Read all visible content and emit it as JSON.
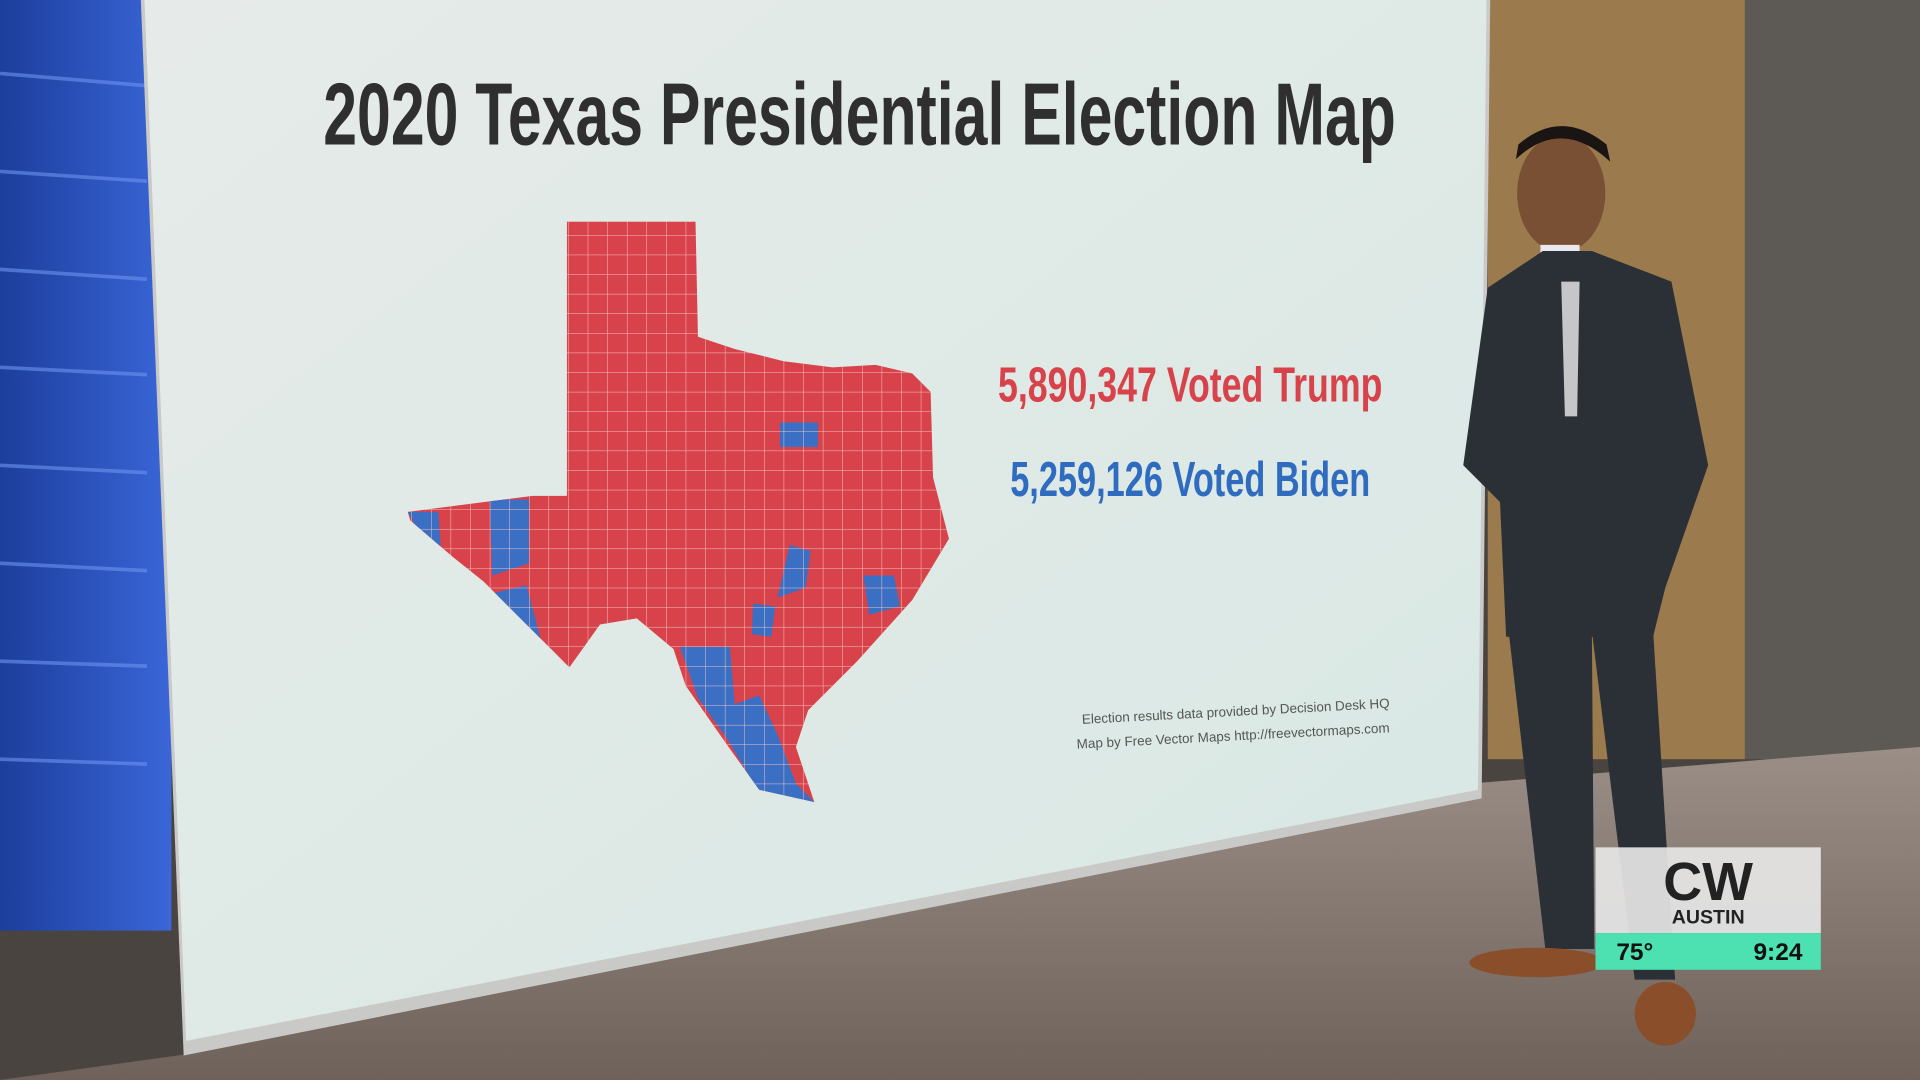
{
  "screen": {
    "title": "2020 Texas Presidential Election Map",
    "trump_line": "5,890,347 Voted Trump",
    "biden_line": "5,259,126 Voted Biden",
    "credits": [
      "Election results data provided by Decision Desk HQ",
      "Map by Free Vector Maps http://freevectormaps.com"
    ]
  },
  "logo": {
    "brand": "CW",
    "city": "AUSTIN",
    "temperature": "75°",
    "time": "9:24"
  }
}
